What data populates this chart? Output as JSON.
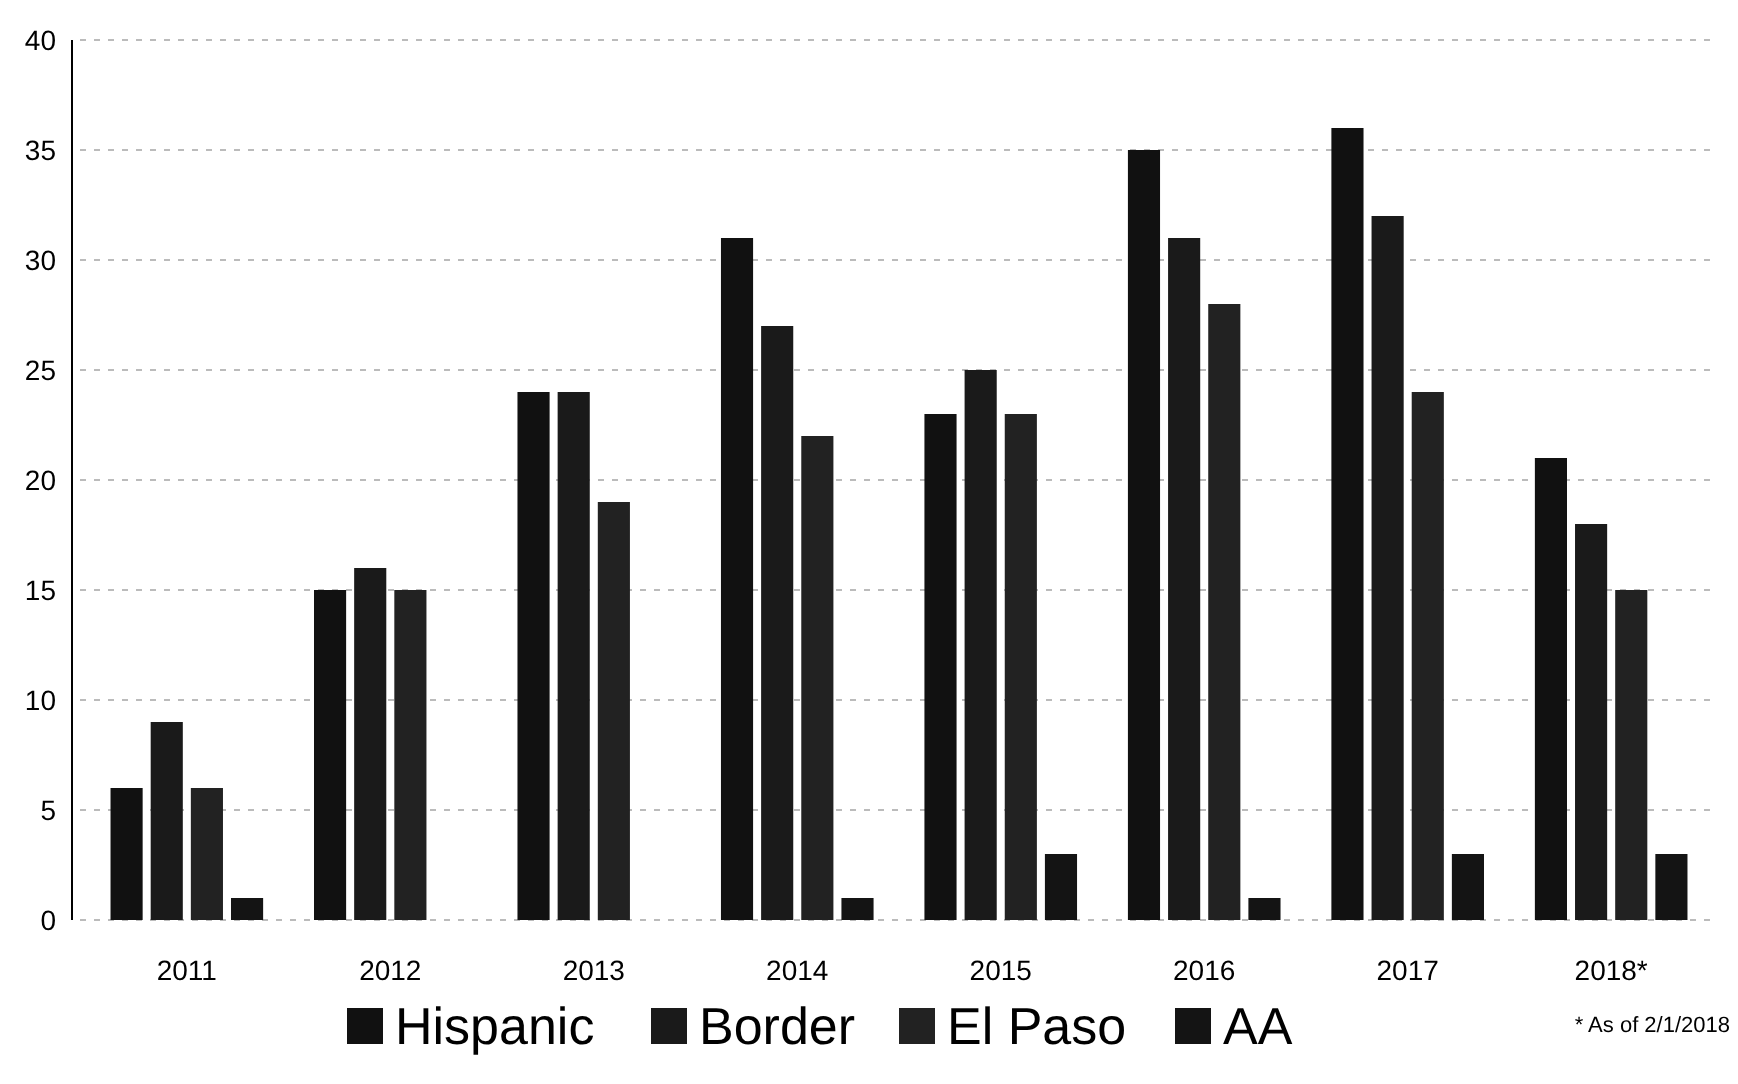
{
  "chart_data": {
    "type": "bar",
    "categories": [
      "2011",
      "2012",
      "2013",
      "2014",
      "2015",
      "2016",
      "2017",
      "2018*"
    ],
    "series": [
      {
        "name": "Hispanic",
        "color": "#111111",
        "values": [
          6,
          15,
          24,
          31,
          23,
          35,
          36,
          21
        ]
      },
      {
        "name": "Border",
        "color": "#1a1a1a",
        "values": [
          9,
          16,
          24,
          27,
          25,
          31,
          32,
          18
        ]
      },
      {
        "name": "El Paso",
        "color": "#222222",
        "values": [
          6,
          15,
          19,
          22,
          23,
          28,
          24,
          15
        ]
      },
      {
        "name": "AA",
        "color": "#141414",
        "values": [
          1,
          null,
          null,
          1,
          3,
          1,
          3,
          3
        ]
      }
    ],
    "ylim": [
      0,
      40
    ],
    "yticks": [
      0,
      5,
      10,
      15,
      20,
      25,
      30,
      35,
      40
    ],
    "grid": "y",
    "legend": "bottom",
    "annotations": [
      "* As of 2/1/2018"
    ]
  }
}
